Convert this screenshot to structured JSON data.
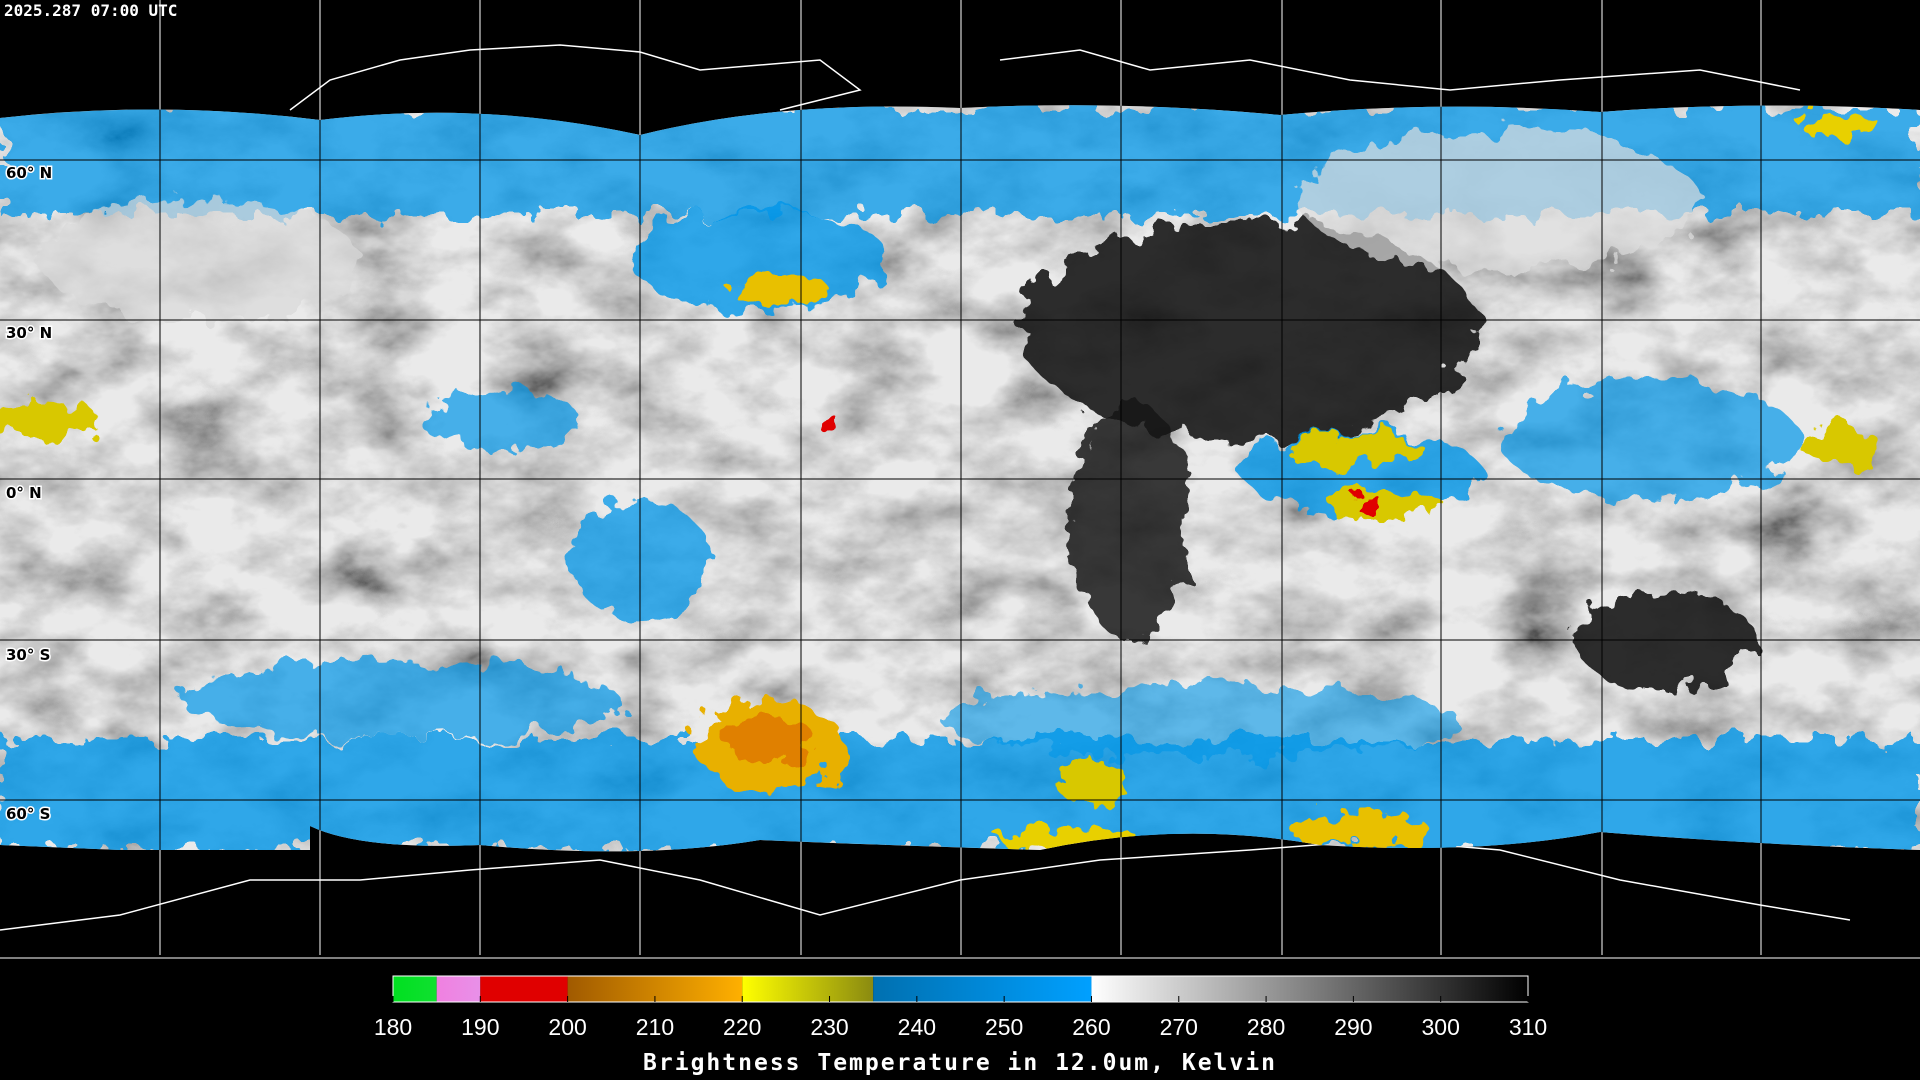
{
  "map": {
    "timestamp": "2025.287 07:00 UTC",
    "latitude_labels": [
      "60° N",
      "30° N",
      "0° N",
      "30° S",
      "60° S"
    ]
  },
  "colorbar": {
    "title": "Brightness Temperature in 12.0um, Kelvin",
    "range": [
      180,
      310
    ],
    "ticks": [
      180,
      190,
      200,
      210,
      220,
      230,
      240,
      250,
      260,
      270,
      280,
      290,
      300,
      310
    ],
    "segments": [
      {
        "from": 180,
        "to": 185,
        "colors": [
          "#00e020",
          "#10e030"
        ]
      },
      {
        "from": 185,
        "to": 190,
        "colors": [
          "#f080e0",
          "#e890e8"
        ]
      },
      {
        "from": 190,
        "to": 200,
        "colors": [
          "#e00000",
          "#e00000"
        ]
      },
      {
        "from": 200,
        "to": 220,
        "colors": [
          "#a05a00",
          "#ffb000"
        ]
      },
      {
        "from": 220,
        "to": 235,
        "colors": [
          "#ffff00",
          "#8a8a10"
        ]
      },
      {
        "from": 235,
        "to": 260,
        "colors": [
          "#0070b0",
          "#00a0ff"
        ]
      },
      {
        "from": 260,
        "to": 310,
        "colors": [
          "#ffffff",
          "#000000"
        ]
      }
    ]
  }
}
